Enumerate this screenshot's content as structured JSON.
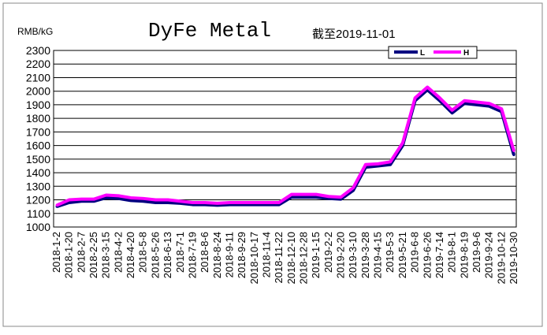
{
  "chart_data": {
    "type": "line",
    "title": "DyFe Metal",
    "subtitle": "截至2019-11-01",
    "ylabel": "RMB/kG",
    "xlabel": "",
    "ylim": [
      1000,
      2300
    ],
    "yticks": [
      1000,
      1100,
      1200,
      1300,
      1400,
      1500,
      1600,
      1700,
      1800,
      1900,
      2000,
      2100,
      2200,
      2300
    ],
    "grid": "horizontal",
    "legend": "top-right",
    "categories": [
      "2018-1-2",
      "2018-1-20",
      "2018-2-7",
      "2018-2-25",
      "2018-3-15",
      "2018-4-2",
      "2018-4-20",
      "2018-5-8",
      "2018-5-26",
      "2018-6-13",
      "2018-7-1",
      "2018-7-19",
      "2018-8-6",
      "2018-8-24",
      "2018-9-11",
      "2018-9-29",
      "2018-10-17",
      "2018-11-4",
      "2018-11-22",
      "2018-12-10",
      "2018-12-28",
      "2019-1-15",
      "2019-2-2",
      "2019-2-20",
      "2019-3-10",
      "2019-3-28",
      "2019-4-15",
      "2019-5-3",
      "2019-5-21",
      "2019-6-8",
      "2019-6-26",
      "2019-7-14",
      "2019-8-1",
      "2019-8-19",
      "2019-9-6",
      "2019-9-24",
      "2019-10-12",
      "2019-10-30"
    ],
    "series": [
      {
        "name": "L",
        "color": "#000080",
        "values": [
          1150,
          1180,
          1190,
          1190,
          1215,
          1210,
          1195,
          1190,
          1180,
          1180,
          1175,
          1165,
          1165,
          1160,
          1165,
          1165,
          1165,
          1165,
          1165,
          1220,
          1220,
          1220,
          1210,
          1205,
          1270,
          1440,
          1450,
          1460,
          1600,
          1930,
          2010,
          1930,
          1840,
          1910,
          1900,
          1890,
          1850,
          1530
        ]
      },
      {
        "name": "H",
        "color": "#ff00ff",
        "values": [
          1160,
          1200,
          1205,
          1205,
          1235,
          1230,
          1215,
          1210,
          1200,
          1200,
          1190,
          1180,
          1180,
          1175,
          1180,
          1180,
          1180,
          1180,
          1180,
          1240,
          1240,
          1240,
          1225,
          1220,
          1290,
          1460,
          1465,
          1480,
          1620,
          1950,
          2030,
          1950,
          1860,
          1930,
          1920,
          1910,
          1870,
          1560
        ]
      }
    ]
  }
}
